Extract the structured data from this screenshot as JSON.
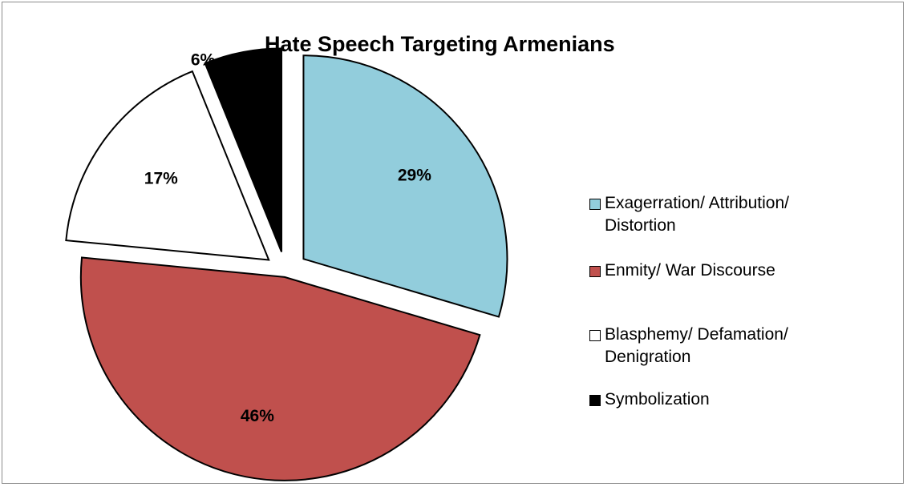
{
  "chart_data": {
    "type": "pie",
    "title": "Hate Speech Targeting Armenians",
    "slices": [
      {
        "label": "Exagerration/ Attribution/ Distortion",
        "value": 29,
        "value_label": "29%",
        "color": "#92cddc"
      },
      {
        "label": "Enmity/ War Discourse",
        "value": 46,
        "value_label": "46%",
        "color": "#c0504d"
      },
      {
        "label": "Blasphemy/ Defamation/ Denigration",
        "value": 17,
        "value_label": "17%",
        "color": "#ffffff"
      },
      {
        "label": "Symbolization",
        "value": 6,
        "value_label": "6%",
        "color": "#000000"
      }
    ],
    "exploded": true,
    "legend_position": "right",
    "data_label_color": "#000000",
    "outline_color": "#000000"
  }
}
